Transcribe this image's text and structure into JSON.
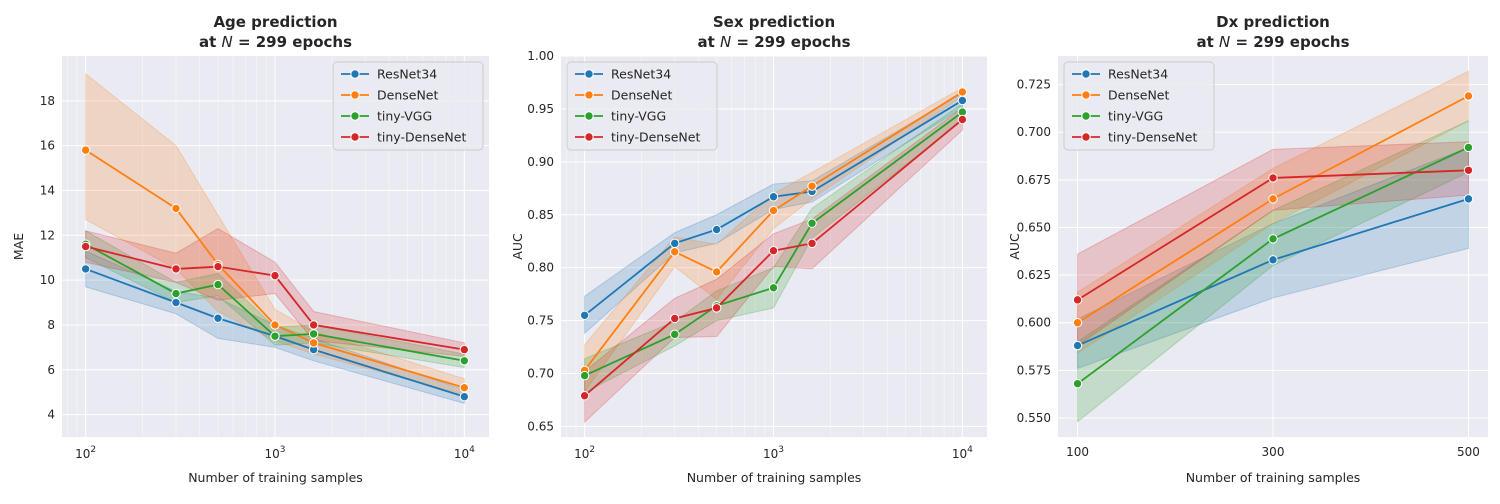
{
  "colors": {
    "ResNet34": "#1f77b4",
    "DenseNet": "#ff7f0e",
    "tiny-VGG": "#2ca02c",
    "tiny-DenseNet": "#d62728",
    "plot_bg": "#eaeaf2",
    "grid": "#ffffff"
  },
  "chart_data": [
    {
      "type": "line",
      "title_line1": "Age prediction",
      "title_line2": "at N = 299 epochs",
      "xlabel": "Number of training samples",
      "ylabel": "MAE",
      "xscale": "log",
      "xlim": [
        75,
        13500
      ],
      "ylim": [
        3.0,
        20.0
      ],
      "x_ticks": [
        {
          "value": 100,
          "base": "10",
          "exp": "2"
        },
        {
          "value": 1000,
          "base": "10",
          "exp": "3"
        },
        {
          "value": 10000,
          "base": "10",
          "exp": "4"
        }
      ],
      "y_ticks": [
        "4",
        "6",
        "8",
        "10",
        "12",
        "14",
        "16",
        "18"
      ],
      "y_tick_values": [
        4,
        6,
        8,
        10,
        12,
        14,
        16,
        18
      ],
      "x": [
        100,
        300,
        500,
        1000,
        1600,
        10000
      ],
      "legend_position": "upper right",
      "series": [
        {
          "name": "ResNet34",
          "values": [
            10.5,
            9.0,
            8.3,
            7.5,
            6.9,
            4.8
          ],
          "lower": [
            9.7,
            8.5,
            7.4,
            7.0,
            6.4,
            4.5
          ],
          "upper": [
            11.3,
            9.5,
            9.2,
            8.0,
            7.4,
            5.1
          ]
        },
        {
          "name": "DenseNet",
          "values": [
            15.8,
            13.2,
            10.7,
            8.0,
            7.2,
            5.2
          ],
          "lower": [
            12.7,
            10.5,
            8.6,
            7.3,
            6.7,
            4.9
          ],
          "upper": [
            19.2,
            16.0,
            12.9,
            8.7,
            7.7,
            5.6
          ]
        },
        {
          "name": "tiny-VGG",
          "values": [
            11.6,
            9.4,
            9.8,
            7.5,
            7.6,
            6.4
          ],
          "lower": [
            11.0,
            9.0,
            9.3,
            7.1,
            7.2,
            6.1
          ],
          "upper": [
            12.2,
            9.9,
            10.3,
            7.9,
            8.0,
            6.7
          ]
        },
        {
          "name": "tiny-DenseNet",
          "values": [
            11.5,
            10.5,
            10.6,
            10.2,
            8.0,
            6.9
          ],
          "lower": [
            10.8,
            9.9,
            9.1,
            9.4,
            7.3,
            6.6
          ],
          "upper": [
            12.2,
            11.2,
            12.3,
            10.8,
            8.6,
            7.2
          ]
        }
      ]
    },
    {
      "type": "line",
      "title_line1": "Sex prediction",
      "title_line2": "at N = 299 epochs",
      "xlabel": "Number of training samples",
      "ylabel": "AUC",
      "xscale": "log",
      "xlim": [
        75,
        13500
      ],
      "ylim": [
        0.64,
        1.0
      ],
      "x_ticks": [
        {
          "value": 100,
          "base": "10",
          "exp": "2"
        },
        {
          "value": 1000,
          "base": "10",
          "exp": "3"
        },
        {
          "value": 10000,
          "base": "10",
          "exp": "4"
        }
      ],
      "y_ticks": [
        "0.65",
        "0.70",
        "0.75",
        "0.80",
        "0.85",
        "0.90",
        "0.95",
        "1.00"
      ],
      "y_tick_values": [
        0.65,
        0.7,
        0.75,
        0.8,
        0.85,
        0.9,
        0.95,
        1.0
      ],
      "x": [
        100,
        300,
        500,
        1000,
        1600,
        10000
      ],
      "legend_position": "upper left",
      "series": [
        {
          "name": "ResNet34",
          "values": [
            0.755,
            0.823,
            0.836,
            0.867,
            0.872,
            0.958
          ],
          "lower": [
            0.738,
            0.814,
            0.823,
            0.855,
            0.862,
            0.951
          ],
          "upper": [
            0.773,
            0.833,
            0.85,
            0.879,
            0.882,
            0.965
          ]
        },
        {
          "name": "DenseNet",
          "values": [
            0.703,
            0.815,
            0.796,
            0.854,
            0.877,
            0.966
          ],
          "lower": [
            0.683,
            0.801,
            0.77,
            0.837,
            0.865,
            0.962
          ],
          "upper": [
            0.727,
            0.829,
            0.822,
            0.87,
            0.89,
            0.97
          ]
        },
        {
          "name": "tiny-VGG",
          "values": [
            0.698,
            0.737,
            0.764,
            0.781,
            0.842,
            0.947
          ],
          "lower": [
            0.682,
            0.726,
            0.75,
            0.762,
            0.828,
            0.939
          ],
          "upper": [
            0.714,
            0.749,
            0.778,
            0.8,
            0.856,
            0.955
          ]
        },
        {
          "name": "tiny-DenseNet",
          "values": [
            0.679,
            0.752,
            0.762,
            0.816,
            0.823,
            0.94
          ],
          "lower": [
            0.654,
            0.734,
            0.735,
            0.801,
            0.799,
            0.93
          ],
          "upper": [
            0.702,
            0.771,
            0.789,
            0.832,
            0.846,
            0.951
          ]
        }
      ]
    },
    {
      "type": "line",
      "title_line1": "Dx prediction",
      "title_line2": "at N = 299 epochs",
      "xlabel": "Number of training samples",
      "ylabel": "AUC",
      "xscale": "linear",
      "xlim": [
        80,
        520
      ],
      "ylim": [
        0.54,
        0.74
      ],
      "x_ticks": [
        {
          "value": 100,
          "label": "100"
        },
        {
          "value": 300,
          "label": "300"
        },
        {
          "value": 500,
          "label": "500"
        }
      ],
      "y_ticks": [
        "0.550",
        "0.575",
        "0.600",
        "0.625",
        "0.650",
        "0.675",
        "0.700",
        "0.725"
      ],
      "y_tick_values": [
        0.55,
        0.575,
        0.6,
        0.625,
        0.65,
        0.675,
        0.7,
        0.725
      ],
      "x": [
        100,
        300,
        500
      ],
      "legend_position": "upper left",
      "series": [
        {
          "name": "ResNet34",
          "values": [
            0.588,
            0.633,
            0.665
          ],
          "lower": [
            0.576,
            0.613,
            0.639
          ],
          "upper": [
            0.602,
            0.652,
            0.692
          ]
        },
        {
          "name": "DenseNet",
          "values": [
            0.6,
            0.665,
            0.719
          ],
          "lower": [
            0.584,
            0.652,
            0.706
          ],
          "upper": [
            0.616,
            0.681,
            0.732
          ]
        },
        {
          "name": "tiny-VGG",
          "values": [
            0.568,
            0.644,
            0.692
          ],
          "lower": [
            0.548,
            0.63,
            0.679
          ],
          "upper": [
            0.59,
            0.659,
            0.706
          ]
        },
        {
          "name": "tiny-DenseNet",
          "values": [
            0.612,
            0.676,
            0.68
          ],
          "lower": [
            0.588,
            0.659,
            0.667
          ],
          "upper": [
            0.636,
            0.691,
            0.695
          ]
        }
      ]
    }
  ]
}
